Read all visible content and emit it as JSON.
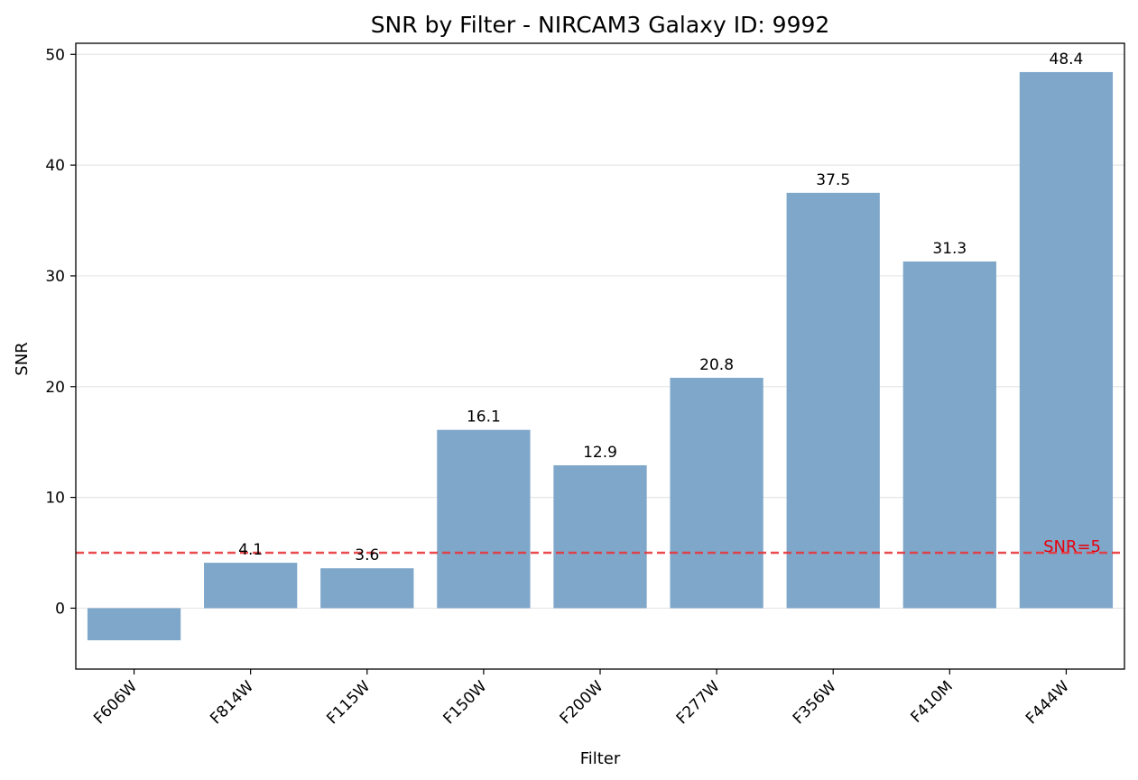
{
  "chart_data": {
    "type": "bar",
    "title": "SNR by Filter - NIRCAM3 Galaxy ID: 9992",
    "xlabel": "Filter",
    "ylabel": "SNR",
    "categories": [
      "F606W",
      "F814W",
      "F115W",
      "F150W",
      "F200W",
      "F277W",
      "F356W",
      "F410M",
      "F444W"
    ],
    "values": [
      -2.9,
      4.1,
      3.6,
      16.1,
      12.9,
      20.8,
      37.5,
      31.3,
      48.4
    ],
    "data_labels": [
      "",
      "4.1",
      "3.6",
      "16.1",
      "12.9",
      "20.8",
      "37.5",
      "31.3",
      "48.4"
    ],
    "ylim": [
      -5.5,
      51
    ],
    "yticks": [
      0,
      10,
      20,
      30,
      40,
      50
    ],
    "ytick_labels": [
      "0",
      "10",
      "20",
      "30",
      "40",
      "50"
    ],
    "grid": "y",
    "bar_color": "#7fa7ca",
    "reference_line": {
      "value": 5,
      "label": "SNR=5",
      "color": "#e8383d",
      "style": "dashed"
    }
  }
}
